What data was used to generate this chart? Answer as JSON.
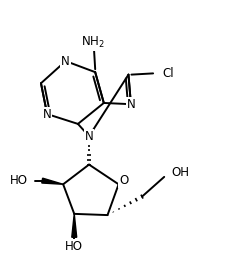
{
  "bg_color": "#ffffff",
  "line_color": "#000000",
  "line_width": 1.4,
  "font_size": 8.5,
  "fig_width": 2.52,
  "fig_height": 2.7,
  "dpi": 100,
  "xlim": [
    0,
    10
  ],
  "ylim": [
    0,
    10.7
  ]
}
